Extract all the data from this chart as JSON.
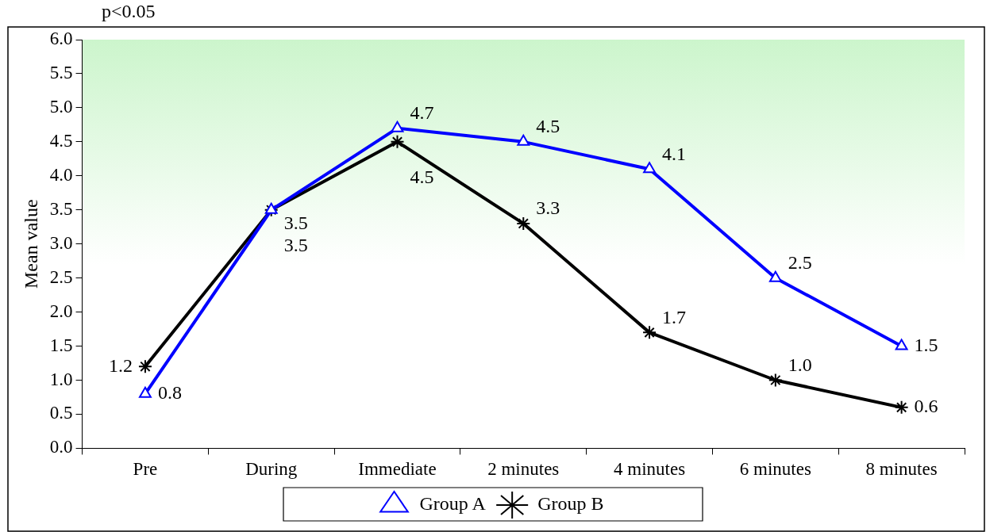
{
  "chart_data": {
    "type": "line",
    "annotations": [
      "p<0.05"
    ],
    "ylabel": "Mean value",
    "categories": [
      "Pre",
      "During",
      "Immediate",
      "2 minutes",
      "4 minutes",
      "6 minutes",
      "8 minutes"
    ],
    "series": [
      {
        "name": "Group A",
        "color": "#0000ff",
        "marker": "triangle",
        "values": [
          0.8,
          3.5,
          4.7,
          4.5,
          4.1,
          2.5,
          1.5
        ],
        "value_labels": [
          "0.8",
          "3.5",
          "4.7",
          "4.5",
          "4.1",
          "2.5",
          "1.5"
        ]
      },
      {
        "name": "Group B",
        "color": "#000000",
        "marker": "cross",
        "values": [
          1.2,
          3.5,
          4.5,
          3.3,
          1.7,
          1.0,
          0.6
        ],
        "value_labels": [
          "1.2",
          "3.5",
          "4.5",
          "3.3",
          "1.7",
          "1.0",
          "0.6"
        ]
      }
    ],
    "ylim": [
      0,
      6
    ],
    "yticks": [
      {
        "value": 0,
        "label": "0.0"
      },
      {
        "value": 0.5,
        "label": "0.5"
      },
      {
        "value": 1,
        "label": "1.0"
      },
      {
        "value": 1.5,
        "label": "1.5"
      },
      {
        "value": 2,
        "label": "2.0"
      },
      {
        "value": 2.5,
        "label": "2.5"
      },
      {
        "value": 3,
        "label": "3.0"
      },
      {
        "value": 3.5,
        "label": "3.5"
      },
      {
        "value": 4,
        "label": "4.0"
      },
      {
        "value": 4.5,
        "label": "4.5"
      },
      {
        "value": 5,
        "label": "5.0"
      },
      {
        "value": 5.5,
        "label": "5.5"
      },
      {
        "value": 6,
        "label": "6.0"
      }
    ],
    "grid": false,
    "legend": "bottom"
  }
}
